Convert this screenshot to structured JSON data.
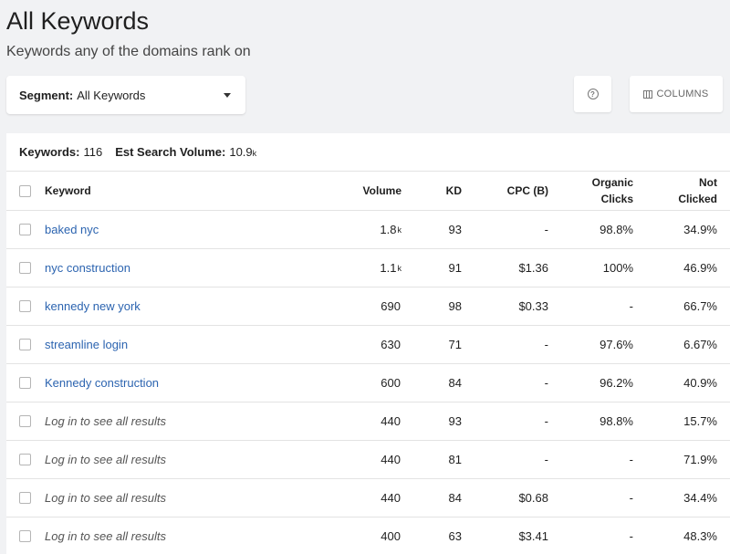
{
  "header": {
    "title": "All Keywords",
    "subtitle": "Keywords any of the domains rank on"
  },
  "segment": {
    "label": "Segment:",
    "value": "All Keywords"
  },
  "toolbar": {
    "help_icon": "question-circle-icon",
    "help_glyph": "?",
    "columns_label": "COLUMNS",
    "columns_icon": "columns-icon"
  },
  "summary": {
    "keywords_label": "Keywords:",
    "keywords_value": "116",
    "volume_label": "Est Search Volume:",
    "volume_value": "10.9",
    "volume_unit": "k"
  },
  "table": {
    "columns": {
      "keyword": "Keyword",
      "volume": "Volume",
      "kd": "KD",
      "cpc": "CPC (B)",
      "organic_line1": "Organic",
      "organic_line2": "Clicks",
      "not_clicked_line1": "Not",
      "not_clicked_line2": "Clicked"
    },
    "rows": [
      {
        "keyword": "baked nyc",
        "locked": false,
        "volume": "1.8",
        "volume_unit": "k",
        "kd": "93",
        "cpc": "-",
        "organic": "98.8%",
        "not_clicked": "34.9%"
      },
      {
        "keyword": "nyc construction",
        "locked": false,
        "volume": "1.1",
        "volume_unit": "k",
        "kd": "91",
        "cpc": "$1.36",
        "organic": "100%",
        "not_clicked": "46.9%"
      },
      {
        "keyword": "kennedy new york",
        "locked": false,
        "volume": "690",
        "volume_unit": "",
        "kd": "98",
        "cpc": "$0.33",
        "organic": "-",
        "not_clicked": "66.7%"
      },
      {
        "keyword": "streamline login",
        "locked": false,
        "volume": "630",
        "volume_unit": "",
        "kd": "71",
        "cpc": "-",
        "organic": "97.6%",
        "not_clicked": "6.67%"
      },
      {
        "keyword": "Kennedy construction",
        "locked": false,
        "volume": "600",
        "volume_unit": "",
        "kd": "84",
        "cpc": "-",
        "organic": "96.2%",
        "not_clicked": "40.9%"
      },
      {
        "keyword": "Log in to see all results",
        "locked": true,
        "volume": "440",
        "volume_unit": "",
        "kd": "93",
        "cpc": "-",
        "organic": "98.8%",
        "not_clicked": "15.7%"
      },
      {
        "keyword": "Log in to see all results",
        "locked": true,
        "volume": "440",
        "volume_unit": "",
        "kd": "81",
        "cpc": "-",
        "organic": "-",
        "not_clicked": "71.9%"
      },
      {
        "keyword": "Log in to see all results",
        "locked": true,
        "volume": "440",
        "volume_unit": "",
        "kd": "84",
        "cpc": "$0.68",
        "organic": "-",
        "not_clicked": "34.4%"
      },
      {
        "keyword": "Log in to see all results",
        "locked": true,
        "volume": "400",
        "volume_unit": "",
        "kd": "63",
        "cpc": "$3.41",
        "organic": "-",
        "not_clicked": "48.3%"
      }
    ]
  },
  "colors": {
    "link": "#2c64b0",
    "background": "#f1f2f4"
  }
}
